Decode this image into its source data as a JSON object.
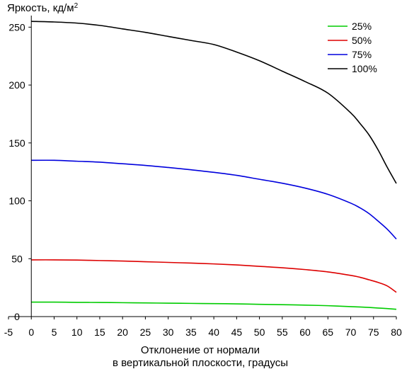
{
  "chart_data": {
    "type": "line",
    "title": "",
    "ylabel": "Яркость, кд/м",
    "ylabel_sup": "2",
    "xlabel_line1": "Отклонение от нормали",
    "xlabel_line2": "в вертикальной плоскости, градусы",
    "xlim": [
      -5,
      80
    ],
    "ylim": [
      0,
      260
    ],
    "xticks": [
      -5,
      0,
      5,
      10,
      15,
      20,
      25,
      30,
      35,
      40,
      45,
      50,
      55,
      60,
      65,
      70,
      75,
      80
    ],
    "yticks": [
      0,
      50,
      100,
      150,
      200,
      250
    ],
    "grid": false,
    "legend_position": "top-right",
    "x": [
      0,
      5,
      10,
      15,
      20,
      25,
      30,
      35,
      40,
      45,
      50,
      55,
      60,
      65,
      70,
      72,
      74,
      76,
      78,
      80
    ],
    "series": [
      {
        "name": "25%",
        "color": "#00cc00",
        "values": [
          12.5,
          12.5,
          12.3,
          12.2,
          12.0,
          11.8,
          11.6,
          11.4,
          11.2,
          11.0,
          10.6,
          10.3,
          9.9,
          9.4,
          8.6,
          8.3,
          7.9,
          7.4,
          6.9,
          6.3
        ]
      },
      {
        "name": "50%",
        "color": "#dd0000",
        "values": [
          49,
          49,
          48.8,
          48.4,
          48,
          47.4,
          46.8,
          46.2,
          45.5,
          44.6,
          43.4,
          42.2,
          40.6,
          38.6,
          35.6,
          34,
          31.8,
          29.5,
          26.5,
          21
        ]
      },
      {
        "name": "75%",
        "color": "#0000dd",
        "values": [
          135,
          135,
          134.2,
          133.4,
          132,
          130.6,
          128.8,
          126.8,
          124.6,
          122,
          118.6,
          115.2,
          111,
          105.6,
          98,
          94,
          89,
          82.5,
          75.5,
          67
        ]
      },
      {
        "name": "100%",
        "color": "#000000",
        "values": [
          255,
          254.5,
          253.5,
          251.5,
          248.5,
          245.5,
          242,
          238.5,
          235,
          228.5,
          221,
          212,
          203,
          193,
          176,
          167,
          157,
          144,
          129,
          115
        ]
      }
    ]
  }
}
